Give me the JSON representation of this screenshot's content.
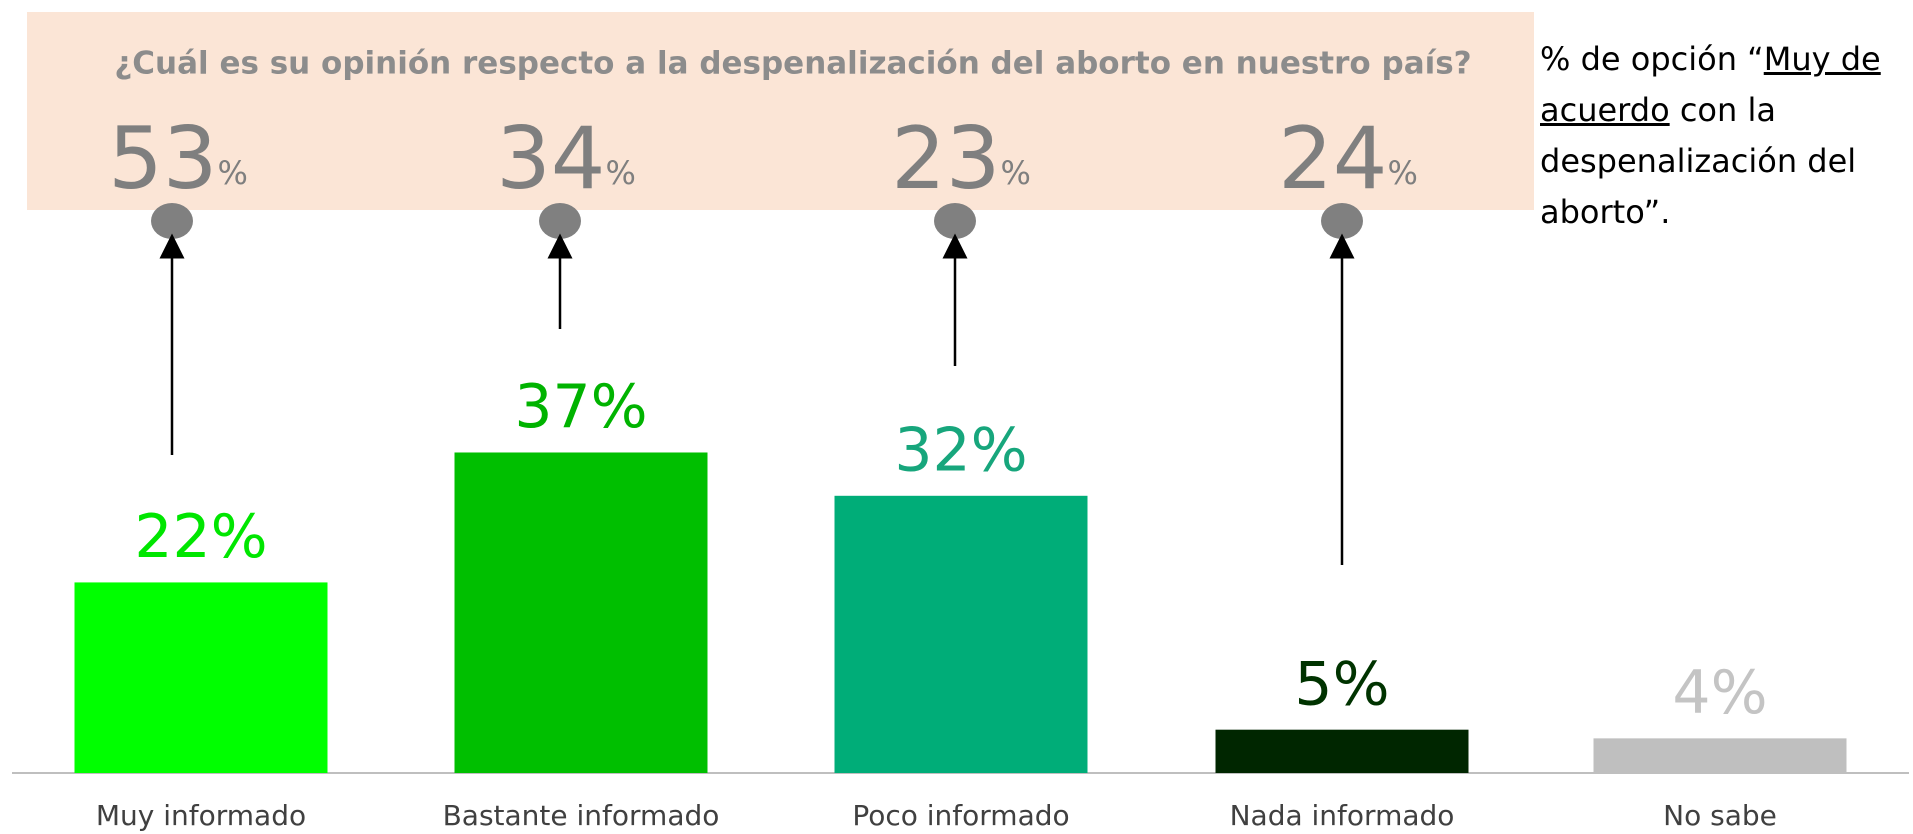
{
  "chart_data": {
    "type": "bar",
    "title": "¿Cuál es su opinión respecto a la despenalización del aborto en nuestro país?",
    "categories": [
      "Muy informado",
      "Bastante informado",
      "Poco informado",
      "Nada informado",
      "No sabe"
    ],
    "values": [
      22,
      37,
      32,
      5,
      4
    ],
    "value_labels": [
      "22%",
      "37%",
      "32%",
      "5%",
      "4%"
    ],
    "colors": [
      "#00ff00",
      "#00bf00",
      "#00ad78",
      "#002600",
      "#bfbfbf"
    ],
    "label_colors": [
      "#00e600",
      "#00b300",
      "#17a67c",
      "#003300",
      "#c4c4c4"
    ],
    "ylim": [
      0,
      80
    ],
    "annotations": {
      "values": [
        53,
        34,
        23,
        24
      ],
      "unit": "%"
    },
    "note": {
      "before": "% de opción “",
      "underlined": "Muy de acuerdo",
      "after": " con la despenalización del aborto”."
    }
  }
}
